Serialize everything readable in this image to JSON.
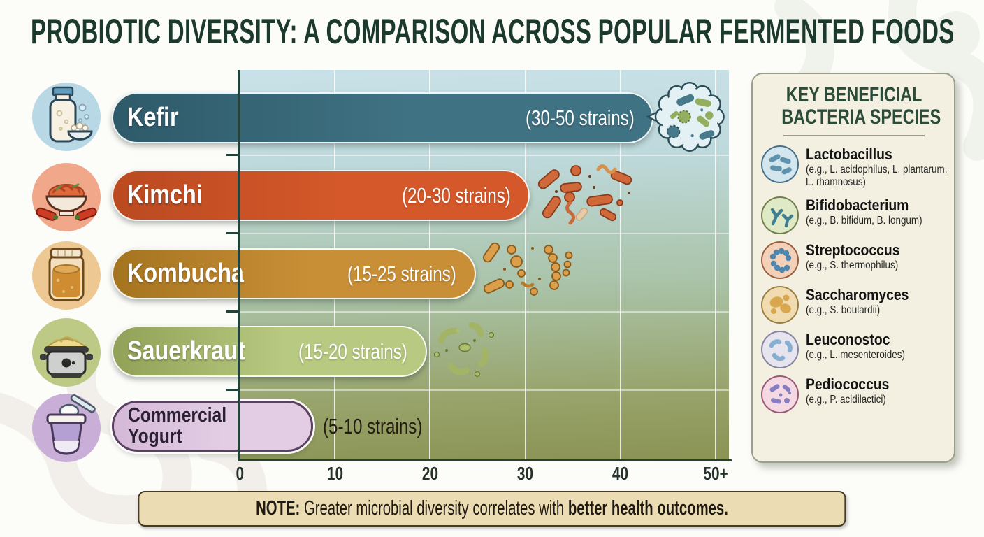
{
  "title": "PROBIOTIC DIVERSITY: A COMPARISON ACROSS POPULAR FERMENTED FOODS",
  "chart_data": {
    "type": "bar",
    "orientation": "horizontal",
    "title": "Probiotic Diversity: A Comparison Across Popular Fermented Foods",
    "categories": [
      "Kefir",
      "Kimchi",
      "Kombucha",
      "Sauerkraut",
      "Commercial Yogurt"
    ],
    "strain_ranges": [
      [
        30,
        50
      ],
      [
        20,
        30
      ],
      [
        15,
        25
      ],
      [
        15,
        20
      ],
      [
        5,
        10
      ]
    ],
    "value_labels": [
      "(30-50 strains)",
      "(20-30 strains)",
      "(15-25 strains)",
      "(15-20 strains)",
      "(5-10 strains)"
    ],
    "bar_end_values": [
      43.5,
      30.5,
      24.8,
      19.7,
      7.7
    ],
    "x_tick_labels": [
      "0",
      "10",
      "20",
      "30",
      "40",
      "50+"
    ],
    "xlim": [
      0,
      51.5
    ],
    "grid": true,
    "legend_position": "right",
    "bar_styles": [
      {
        "dark": "#2e5a69",
        "main": "#3f7283",
        "text": "#ffffff"
      },
      {
        "dark": "#bb4a20",
        "main": "#d4582a",
        "text": "#ffffff"
      },
      {
        "dark": "#a5741f",
        "main": "#c98f37",
        "text": "#ffffff"
      },
      {
        "dark": "#91a157",
        "main": "#b8c981",
        "text": "#ffffff"
      },
      {
        "dark": "#d5b9d8",
        "main": "#e2cde4",
        "text": "#2b2133"
      }
    ]
  },
  "food_icons": [
    {
      "name": "milk-bottle-and-kefir-grains"
    },
    {
      "name": "kimchi-bowl-with-chili-peppers"
    },
    {
      "name": "kombucha-jar"
    },
    {
      "name": "sauerkraut-crock-pot"
    },
    {
      "name": "yogurt-cup-with-spoon"
    }
  ],
  "legend": {
    "title_line1": "KEY BENEFICIAL",
    "title_line2": "BACTERIA SPECIES",
    "items": [
      {
        "name": "Lactobacillus",
        "examples": "(e.g., L. acidophilus, L. plantarum, L. rhamnosus)",
        "icon_bg": "#d3e6ee",
        "icon_border": "#49708a",
        "icon_fg": "#5f93ad"
      },
      {
        "name": "Bifidobacterium",
        "examples": "(e.g., B. bifidum, B. longum)",
        "icon_bg": "#dfe9c6",
        "icon_border": "#70804a",
        "icon_fg": "#3e7e90"
      },
      {
        "name": "Streptococcus",
        "examples": "(e.g., S. thermophilus)",
        "icon_bg": "#f3d0b8",
        "icon_border": "#9a6040",
        "icon_fg": "#4f86ad"
      },
      {
        "name": "Saccharomyces",
        "examples": "(e.g., S. boulardii)",
        "icon_bg": "#f1dcb2",
        "icon_border": "#9a7f42",
        "icon_fg": "#d9a84e"
      },
      {
        "name": "Leuconostoc",
        "examples": "(e.g., L. mesenteroides)",
        "icon_bg": "#e6e5ef",
        "icon_border": "#8585a0",
        "icon_fg": "#85aed0"
      },
      {
        "name": "Pediococcus",
        "examples": "(e.g., P. acidilactici)",
        "icon_bg": "#f4d9e2",
        "icon_border": "#9a5a75",
        "icon_fg": "#8a7ec0"
      }
    ]
  },
  "note": {
    "label": "NOTE:",
    "text": " Greater microbial diversity correlates with ",
    "bold": "better health outcomes."
  },
  "colors": {
    "title_text": "#1c392e",
    "axis": "#22423a",
    "panel_bg": "#f3f0e1",
    "note_bg": "#ecdcb4"
  }
}
